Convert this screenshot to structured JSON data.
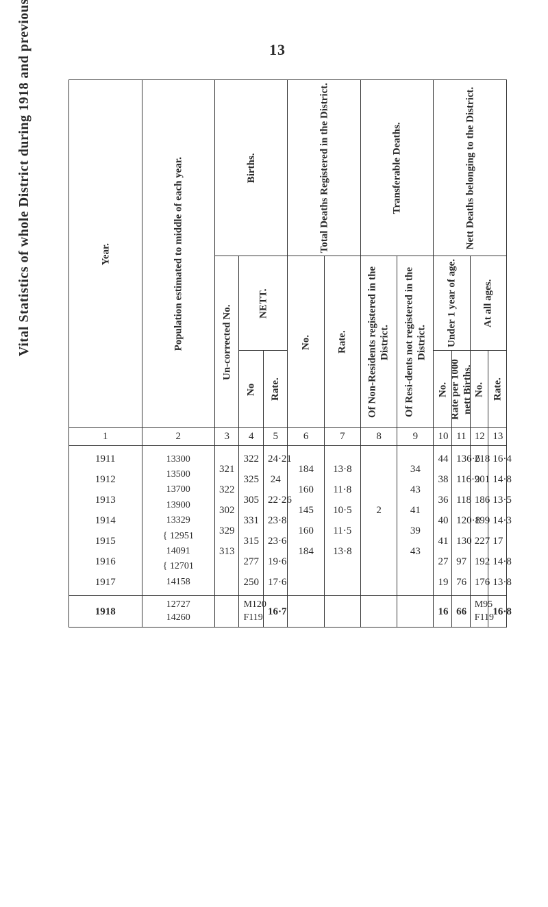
{
  "page_number": "13",
  "side_title": "Vital Statistics of whole District during 1918 and previous Years.",
  "groups": {
    "nett_deaths": "Nett Deaths belonging to the District.",
    "transferable": "Transferable Deaths.",
    "total_deaths": "Total Deaths Registered in the District.",
    "births": "Births.",
    "under1": "Under 1 year of age.",
    "all_ages": "At all ages.",
    "nett": "NETT."
  },
  "headers": {
    "year": "Year.",
    "population": "Population estimated to middle of each year.",
    "un_corrected": "Un-corrected No.",
    "no": "No",
    "no_dot": "No.",
    "rate": "Rate.",
    "rate_per": "Rate per 1000 nett Births.",
    "non_res": "Of Non-Residents registered in the District.",
    "resi_not": "Of Resi-dents not registered in the District."
  },
  "rownums": {
    "r1": "1",
    "r2": "2",
    "r3": "3",
    "r4": "4",
    "r5": "5",
    "r6": "6",
    "r7": "7",
    "r8": "8",
    "r9": "9",
    "r10": "10",
    "r11": "11",
    "r12": "12",
    "r13": "13"
  },
  "data": {
    "year": "1911\n1912\n1913\n1914\n1915\n1916\n1917",
    "year_total": "1918",
    "population": "13300\n13500\n13700\n13900\n13329\n{ 12951\n  14091\n{ 12701\n  14158",
    "population_total": "12727\n14260",
    "uncorrected": "321\n322\n302\n329\n313\n\n",
    "uncorrected_total": "",
    "nett_no": "322\n325\n305\n331\n315\n277\n250",
    "nett_no_total": "M120\nF119",
    "nett_rate": "24·21\n24\n22·26\n23·8\n23·6\n19·6\n17·6",
    "nett_rate_total": "16·7",
    "total_no": "184\n160\n145\n160\n184\n\n",
    "total_no_total": "",
    "total_rate": "13·8\n11·8\n10·5\n11·5\n13·8\n\n",
    "total_rate_total": "",
    "non_res": "\n\n2\n\n\n\n",
    "non_res_total": "",
    "resi_not": "34\n43\n41\n39\n43\n\n",
    "resi_not_total": "",
    "u1_no": "44\n38\n36\n40\n41\n27\n19",
    "u1_no_total": "16",
    "u1_rate": "136·6\n116·9\n118\n120·8\n130\n97\n76",
    "u1_rate_total": "66",
    "all_no": "218\n201\n186\n199\n227\n192\n176",
    "all_no_total": "M95\nF119",
    "all_rate": "16·4\n14·8\n13·5\n14·3\n17\n14·8\n13·8",
    "all_rate_total": "16·8"
  }
}
